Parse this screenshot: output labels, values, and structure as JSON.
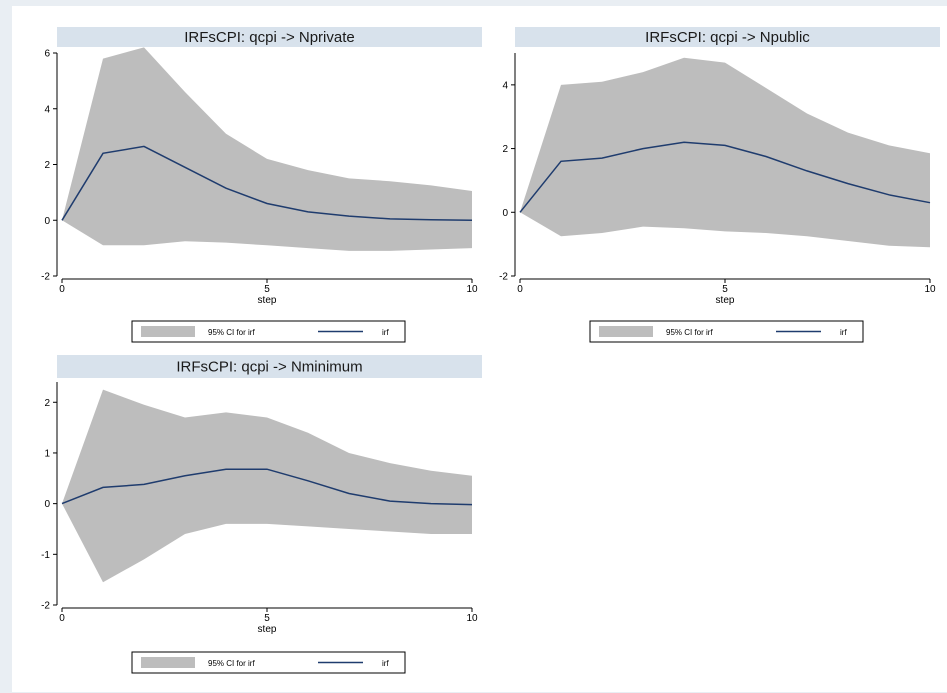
{
  "chart_data": [
    {
      "type": "area",
      "title": "IRFsCPI: qcpi -> Nprivate",
      "xlabel": "step",
      "ylabel": "",
      "xlim": [
        0,
        10
      ],
      "ylim": [
        -2,
        6
      ],
      "xticks": [
        0,
        5,
        10
      ],
      "yticks": [
        -2,
        0,
        2,
        4,
        6
      ],
      "x": [
        0,
        1,
        2,
        3,
        4,
        5,
        6,
        7,
        8,
        9,
        10
      ],
      "series": [
        {
          "name": "95% CI for irf",
          "kind": "band",
          "lower": [
            0,
            -0.9,
            -0.9,
            -0.75,
            -0.8,
            -0.9,
            -1.0,
            -1.1,
            -1.1,
            -1.05,
            -1.0
          ],
          "upper": [
            0,
            5.8,
            6.2,
            4.6,
            3.1,
            2.2,
            1.8,
            1.5,
            1.4,
            1.25,
            1.05
          ]
        },
        {
          "name": "irf",
          "kind": "line",
          "values": [
            0,
            2.4,
            2.65,
            1.9,
            1.15,
            0.6,
            0.3,
            0.15,
            0.05,
            0.02,
            0.0
          ]
        }
      ],
      "legend": {
        "position": "bottom",
        "entries": [
          "95% CI for irf",
          "irf"
        ]
      },
      "grid": false
    },
    {
      "type": "area",
      "title": "IRFsCPI: qcpi -> Npublic",
      "xlabel": "step",
      "ylabel": "",
      "xlim": [
        0,
        10
      ],
      "ylim": [
        -2,
        5
      ],
      "xticks": [
        0,
        5,
        10
      ],
      "yticks": [
        -2,
        0,
        2,
        4
      ],
      "x": [
        0,
        1,
        2,
        3,
        4,
        5,
        6,
        7,
        8,
        9,
        10
      ],
      "series": [
        {
          "name": "95% CI for irf",
          "kind": "band",
          "lower": [
            0,
            -0.75,
            -0.65,
            -0.45,
            -0.5,
            -0.6,
            -0.65,
            -0.75,
            -0.9,
            -1.05,
            -1.1
          ],
          "upper": [
            0,
            4.0,
            4.1,
            4.4,
            4.85,
            4.7,
            3.9,
            3.1,
            2.5,
            2.1,
            1.85
          ]
        },
        {
          "name": "irf",
          "kind": "line",
          "values": [
            0,
            1.6,
            1.7,
            2.0,
            2.2,
            2.1,
            1.75,
            1.3,
            0.9,
            0.55,
            0.3
          ]
        }
      ],
      "legend": {
        "position": "bottom",
        "entries": [
          "95% CI for irf",
          "irf"
        ]
      },
      "grid": false
    },
    {
      "type": "area",
      "title": "IRFsCPI: qcpi -> Nminimum",
      "xlabel": "step",
      "ylabel": "",
      "xlim": [
        0,
        10
      ],
      "ylim": [
        -2,
        2.4
      ],
      "xticks": [
        0,
        5,
        10
      ],
      "yticks": [
        -2,
        -1,
        0,
        1,
        2
      ],
      "x": [
        0,
        1,
        2,
        3,
        4,
        5,
        6,
        7,
        8,
        9,
        10
      ],
      "series": [
        {
          "name": "95% CI for irf",
          "kind": "band",
          "lower": [
            0,
            -1.55,
            -1.1,
            -0.6,
            -0.4,
            -0.4,
            -0.45,
            -0.5,
            -0.55,
            -0.6,
            -0.6
          ],
          "upper": [
            0,
            2.25,
            1.95,
            1.7,
            1.8,
            1.7,
            1.4,
            1.0,
            0.8,
            0.65,
            0.55
          ]
        },
        {
          "name": "irf",
          "kind": "line",
          "values": [
            0,
            0.32,
            0.38,
            0.55,
            0.68,
            0.68,
            0.45,
            0.2,
            0.05,
            0.0,
            -0.02
          ]
        }
      ],
      "legend": {
        "position": "bottom",
        "entries": [
          "95% CI for irf",
          "irf"
        ]
      },
      "grid": false
    }
  ],
  "colors": {
    "background": "#e9eef3",
    "panel": "#ffffff",
    "title_bar": "#d8e2ec",
    "band": "#bdbdbd",
    "line": "#1f3c6e",
    "axis": "#000000"
  }
}
